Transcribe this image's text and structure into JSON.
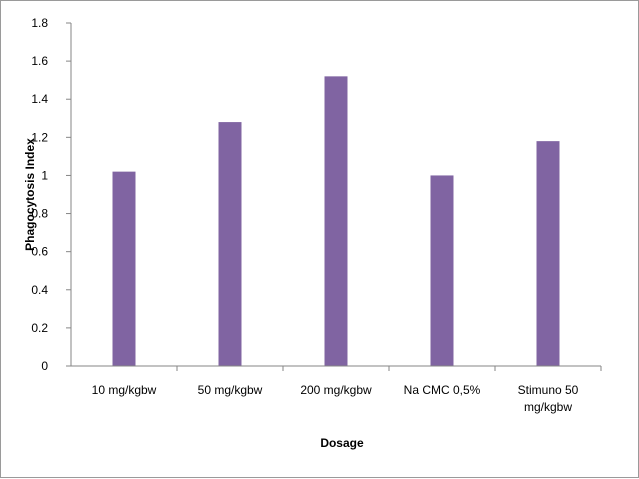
{
  "chart_data": {
    "type": "bar",
    "title": "",
    "xlabel": "Dosage",
    "ylabel": "Phagocytosis Index",
    "categories": [
      [
        "10 mg/kgbw"
      ],
      [
        "50 mg/kgbw"
      ],
      [
        "200 mg/kgbw"
      ],
      [
        "Na CMC 0,5%"
      ],
      [
        "Stimuno 50",
        "mg/kgbw"
      ]
    ],
    "values": [
      1.02,
      1.28,
      1.52,
      1.0,
      1.18
    ],
    "ylim": [
      0,
      1.8
    ],
    "yticks": [
      "0",
      "0.2",
      "0.4",
      "0.6",
      "0.8",
      "1",
      "1.2",
      "1.4",
      "1.6",
      "1.8"
    ],
    "grid": false,
    "legend": "none",
    "bar_color": "#8064a2"
  }
}
